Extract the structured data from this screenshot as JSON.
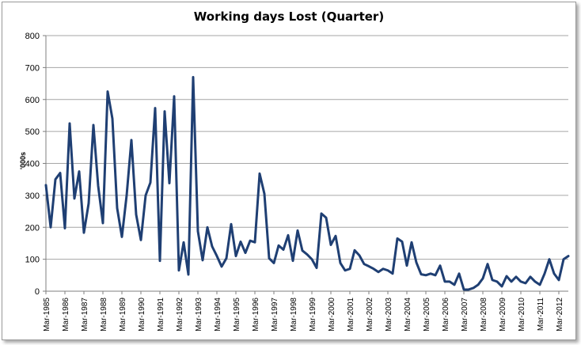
{
  "chart_data": {
    "type": "line",
    "title": "Working days Lost (Quarter)",
    "xlabel": "",
    "ylabel": "'000s",
    "ylim": [
      0,
      800
    ],
    "yticks": [
      0,
      100,
      200,
      300,
      400,
      500,
      600,
      700,
      800
    ],
    "grid": true,
    "legend": "none",
    "line_color": "#1f3f73",
    "xtick_labels": [
      "Mar-1985",
      "Mar-1986",
      "Mar-1987",
      "Mar-1988",
      "Mar-1989",
      "Mar-1990",
      "Mar-1991",
      "Mar-1992",
      "Mar-1993",
      "Mar-1994",
      "Mar-1995",
      "Mar-1996",
      "Mar-1997",
      "Mar-1998",
      "Mar-1999",
      "Mar-2000",
      "Mar-2001",
      "Mar-2002",
      "Mar-2003",
      "Mar-2004",
      "Mar-2005",
      "Mar-2006",
      "Mar-2007",
      "Mar-2008",
      "Mar-2009",
      "Mar-2010",
      "Mar-2011",
      "Mar-2012"
    ],
    "series": [
      {
        "values": [
          332,
          200,
          350,
          370,
          197,
          525,
          290,
          375,
          183,
          275,
          520,
          330,
          213,
          625,
          540,
          260,
          170,
          300,
          473,
          240,
          160,
          300,
          340,
          573,
          95,
          563,
          338,
          610,
          65,
          153,
          52,
          670,
          188,
          97,
          200,
          140,
          110,
          77,
          103,
          210,
          110,
          155,
          120,
          158,
          153,
          368,
          305,
          103,
          88,
          143,
          130,
          175,
          95,
          190,
          127,
          115,
          100,
          73,
          243,
          230,
          145,
          173,
          88,
          65,
          70,
          128,
          112,
          85,
          78,
          70,
          60,
          70,
          65,
          55,
          165,
          155,
          80,
          153,
          90,
          53,
          50,
          55,
          50,
          80,
          30,
          30,
          20,
          55,
          5,
          5,
          10,
          20,
          40,
          85,
          35,
          30,
          15,
          47,
          30,
          45,
          30,
          25,
          45,
          30,
          20,
          55,
          100,
          55,
          35,
          100,
          110
        ]
      }
    ]
  }
}
